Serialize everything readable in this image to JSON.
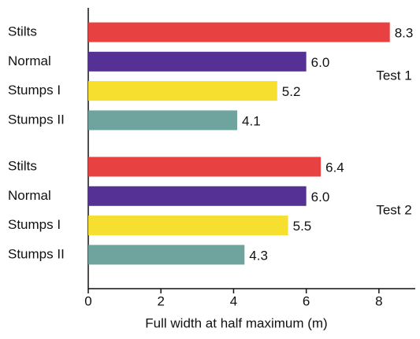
{
  "chart_data": {
    "type": "bar",
    "orientation": "horizontal",
    "xlabel": "Full width at half maximum (m)",
    "xlim": [
      0,
      9
    ],
    "xticks": [
      0,
      2,
      4,
      6,
      8
    ],
    "colors": [
      "#e84141",
      "#553195",
      "#f6df2f",
      "#6fa39e"
    ],
    "groups": [
      {
        "name": "Test 1",
        "categories": [
          "Stilts",
          "Normal",
          "Stumps I",
          "Stumps II"
        ],
        "values": [
          8.3,
          6,
          5.2,
          4.1
        ],
        "value_labels": [
          "8.3",
          "6.0",
          "5.2",
          "4.1"
        ]
      },
      {
        "name": "Test 2",
        "categories": [
          "Stilts",
          "Normal",
          "Stumps I",
          "Stumps II"
        ],
        "values": [
          6.4,
          6,
          5.5,
          4.3
        ],
        "value_labels": [
          "6.4",
          "6.0",
          "5.5",
          "4.3"
        ]
      }
    ]
  }
}
